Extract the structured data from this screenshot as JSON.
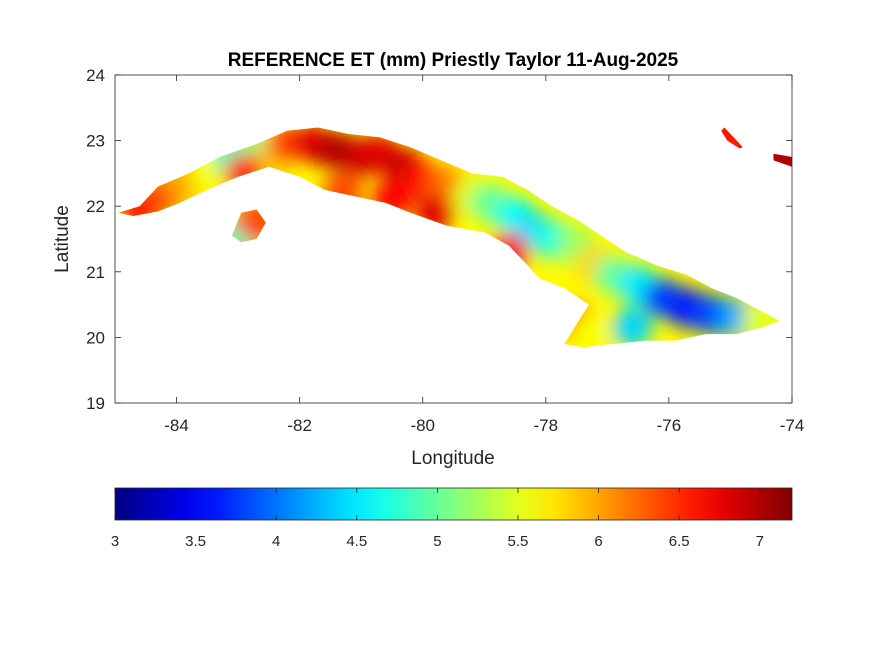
{
  "chart_data": {
    "type": "heatmap",
    "title": "REFERENCE ET (mm) Priestly Taylor 11-Aug-2025",
    "xlabel": "Longitude",
    "ylabel": "Latitude",
    "xlim": [
      -85,
      -74
    ],
    "ylim": [
      19,
      24
    ],
    "x_ticks": [
      -84,
      -82,
      -80,
      -78,
      -76,
      -74
    ],
    "y_ticks": [
      19,
      20,
      21,
      22,
      23,
      24
    ],
    "grid": false,
    "colormap": "jet",
    "colorbar": {
      "orientation": "horizontal",
      "placement": "bottom",
      "clim": [
        3,
        7.2
      ],
      "ticks": [
        3,
        3.5,
        4,
        4.5,
        5,
        5.5,
        6,
        6.5,
        7
      ]
    },
    "regions": [
      {
        "name": "Cuba main island",
        "outline": [
          [
            -84.95,
            21.9
          ],
          [
            -84.6,
            22.0
          ],
          [
            -84.3,
            22.3
          ],
          [
            -83.8,
            22.5
          ],
          [
            -83.3,
            22.75
          ],
          [
            -82.7,
            22.95
          ],
          [
            -82.2,
            23.15
          ],
          [
            -81.7,
            23.2
          ],
          [
            -81.2,
            23.1
          ],
          [
            -80.7,
            23.05
          ],
          [
            -80.2,
            22.9
          ],
          [
            -79.7,
            22.7
          ],
          [
            -79.2,
            22.5
          ],
          [
            -78.7,
            22.45
          ],
          [
            -78.3,
            22.25
          ],
          [
            -77.9,
            22.0
          ],
          [
            -77.5,
            21.8
          ],
          [
            -77.1,
            21.55
          ],
          [
            -76.7,
            21.3
          ],
          [
            -76.2,
            21.1
          ],
          [
            -75.7,
            20.95
          ],
          [
            -75.3,
            20.75
          ],
          [
            -74.9,
            20.6
          ],
          [
            -74.5,
            20.4
          ],
          [
            -74.2,
            20.25
          ],
          [
            -74.5,
            20.15
          ],
          [
            -74.9,
            20.05
          ],
          [
            -75.4,
            20.05
          ],
          [
            -75.9,
            19.95
          ],
          [
            -76.4,
            19.95
          ],
          [
            -76.9,
            19.9
          ],
          [
            -77.4,
            19.85
          ],
          [
            -77.7,
            19.9
          ],
          [
            -77.5,
            20.2
          ],
          [
            -77.3,
            20.5
          ],
          [
            -77.7,
            20.75
          ],
          [
            -78.1,
            20.9
          ],
          [
            -78.6,
            21.4
          ],
          [
            -79.0,
            21.6
          ],
          [
            -79.6,
            21.7
          ],
          [
            -80.2,
            21.9
          ],
          [
            -80.6,
            22.05
          ],
          [
            -81.1,
            22.15
          ],
          [
            -81.6,
            22.25
          ],
          [
            -82.0,
            22.45
          ],
          [
            -82.5,
            22.6
          ],
          [
            -83.0,
            22.45
          ],
          [
            -83.5,
            22.25
          ],
          [
            -83.95,
            22.05
          ],
          [
            -84.3,
            21.92
          ],
          [
            -84.7,
            21.85
          ]
        ],
        "value_samples": [
          [
            -84.6,
            21.95,
            6.6
          ],
          [
            -84.2,
            22.2,
            6.4
          ],
          [
            -83.9,
            22.4,
            6.0
          ],
          [
            -83.5,
            22.55,
            5.6
          ],
          [
            -83.1,
            22.75,
            4.8
          ],
          [
            -82.7,
            22.8,
            5.0
          ],
          [
            -82.4,
            22.7,
            5.8
          ],
          [
            -82.2,
            22.95,
            6.4
          ],
          [
            -81.8,
            22.95,
            6.8
          ],
          [
            -81.4,
            22.85,
            7.0
          ],
          [
            -81.0,
            22.75,
            6.9
          ],
          [
            -80.7,
            22.8,
            6.8
          ],
          [
            -80.3,
            22.6,
            6.9
          ],
          [
            -80.0,
            22.4,
            6.6
          ],
          [
            -79.6,
            22.3,
            6.2
          ],
          [
            -79.2,
            22.15,
            5.5
          ],
          [
            -78.9,
            22.05,
            5.0
          ],
          [
            -78.5,
            21.85,
            4.6
          ],
          [
            -78.2,
            21.6,
            4.4
          ],
          [
            -77.9,
            21.5,
            4.7
          ],
          [
            -77.5,
            21.4,
            5.2
          ],
          [
            -77.2,
            21.1,
            5.8
          ],
          [
            -76.9,
            20.95,
            5.0
          ],
          [
            -76.5,
            20.8,
            4.5
          ],
          [
            -76.1,
            20.6,
            3.8
          ],
          [
            -75.7,
            20.45,
            3.6
          ],
          [
            -75.3,
            20.35,
            3.8
          ],
          [
            -74.9,
            20.3,
            4.2
          ],
          [
            -74.5,
            20.25,
            5.5
          ],
          [
            -77.5,
            20.2,
            6.4
          ],
          [
            -77.3,
            20.05,
            5.6
          ],
          [
            -76.6,
            20.15,
            4.4
          ],
          [
            -78.6,
            21.3,
            6.7
          ],
          [
            -79.8,
            21.9,
            6.8
          ],
          [
            -80.5,
            22.1,
            6.7
          ],
          [
            -81.3,
            22.2,
            6.4
          ],
          [
            -82.9,
            22.5,
            6.5
          ]
        ]
      },
      {
        "name": "Isla de la Juventud",
        "outline": [
          [
            -83.1,
            21.55
          ],
          [
            -82.95,
            21.9
          ],
          [
            -82.7,
            21.95
          ],
          [
            -82.55,
            21.75
          ],
          [
            -82.7,
            21.5
          ],
          [
            -82.95,
            21.45
          ]
        ],
        "value_samples": [
          [
            -82.85,
            21.7,
            6.2
          ],
          [
            -82.95,
            21.55,
            4.8
          ],
          [
            -82.7,
            21.75,
            6.4
          ]
        ]
      },
      {
        "name": "north-east islet",
        "outline": [
          [
            -75.1,
            23.2
          ],
          [
            -74.95,
            23.05
          ],
          [
            -74.8,
            22.9
          ],
          [
            -74.85,
            22.88
          ],
          [
            -75.05,
            23.0
          ],
          [
            -75.15,
            23.15
          ]
        ],
        "value_samples": [
          [
            -75.0,
            23.05,
            6.6
          ]
        ]
      },
      {
        "name": "east edge fragment",
        "outline": [
          [
            -74.3,
            22.8
          ],
          [
            -74.0,
            22.75
          ],
          [
            -74.0,
            22.6
          ],
          [
            -74.3,
            22.7
          ]
        ],
        "value_samples": [
          [
            -74.15,
            22.72,
            7.0
          ]
        ]
      }
    ]
  }
}
